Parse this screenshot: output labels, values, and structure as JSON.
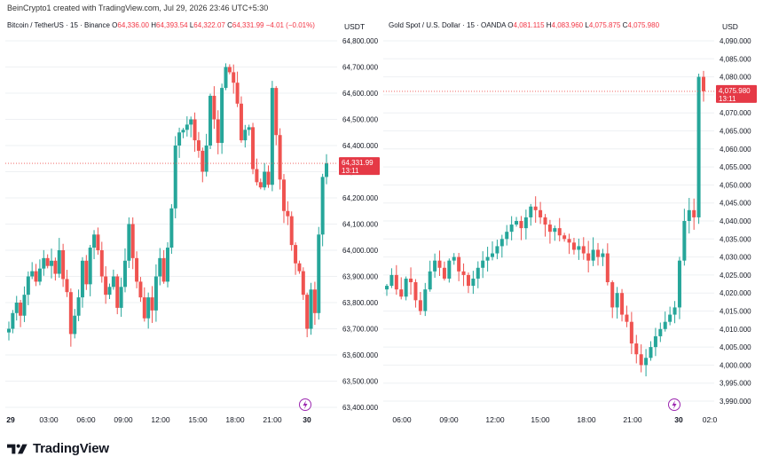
{
  "credit": "BeinCrypto1 created with TradingView.com, Jul 29, 2026 23:46 UTC+5:30",
  "brand": "TradingView",
  "colors": {
    "up": "#26a69a",
    "down": "#ef5350",
    "down_strong": "#e53946",
    "grid": "#eef0f3"
  },
  "charts": [
    {
      "title": "Bitcoin / TetherUS · 15 · Binance",
      "ohlc": {
        "o_label": "O",
        "o": "64,336.00",
        "h_label": "H",
        "h": "64,393.54",
        "l_label": "L",
        "l": "64,322.07",
        "c_label": "C",
        "c": "64,331.99",
        "change": "−4.01 (−0.01%)"
      },
      "currency": "USDT",
      "price_ticks": [
        "64,800.000",
        "64,700.000",
        "64,600.000",
        "64,500.000",
        "64,400.000",
        "64,300.000",
        "64,200.000",
        "64,100.000",
        "64,000.000",
        "63,900.000",
        "63,800.000",
        "63,700.000",
        "63,600.000",
        "63,500.000",
        "63,400.000"
      ],
      "time_ticks": [
        "29",
        "03:00",
        "06:00",
        "09:00",
        "12:00",
        "15:00",
        "18:00",
        "21:00",
        "30"
      ],
      "last_price": {
        "value": "64,331.99",
        "countdown": "13:11"
      },
      "chart_data": {
        "type": "candlestick",
        "symbol": "BTCUSDT",
        "interval": "15",
        "ylim": [
          63400,
          64800
        ],
        "last_close": 64331.99,
        "closes": [
          63700,
          63760,
          63800,
          63750,
          63830,
          63900,
          63920,
          63880,
          63930,
          63970,
          63940,
          63960,
          63910,
          64000,
          63890,
          63840,
          63680,
          63750,
          63820,
          63960,
          63870,
          64010,
          64060,
          64000,
          63900,
          63830,
          63860,
          63900,
          63780,
          63860,
          63960,
          64100,
          63970,
          63880,
          63820,
          63740,
          63820,
          63770,
          63900,
          63970,
          63880,
          64010,
          64160,
          64400,
          64450,
          64460,
          64480,
          64500,
          64420,
          64380,
          64300,
          64400,
          64590,
          64500,
          64410,
          64620,
          64700,
          64680,
          64640,
          64560,
          64420,
          64460,
          64470,
          64310,
          64260,
          64240,
          64300,
          64250,
          64620,
          64440,
          64270,
          64150,
          64130,
          64020,
          63950,
          63920,
          63830,
          63700,
          63850,
          63760,
          64060,
          64280,
          64332
        ]
      }
    },
    {
      "title": "Gold Spot / U.S. Dollar · 15 · OANDA",
      "ohlc": {
        "o_label": "O",
        "o": "4,081.115",
        "h_label": "H",
        "h": "4,083.960",
        "l_label": "L",
        "l": "4,075.875",
        "c_label": "C",
        "c": "4,075.980",
        "change": ""
      },
      "currency": "USD",
      "price_ticks": [
        "4,090.000",
        "4,085.000",
        "4,080.000",
        "4,075.000",
        "4,070.000",
        "4,065.000",
        "4,060.000",
        "4,055.000",
        "4,050.000",
        "4,045.000",
        "4,040.000",
        "4,035.000",
        "4,030.000",
        "4,025.000",
        "4,020.000",
        "4,015.000",
        "4,010.000",
        "4,005.000",
        "4,000.000",
        "3,995.000",
        "3,990.000"
      ],
      "time_ticks": [
        "06:00",
        "09:00",
        "12:00",
        "15:00",
        "18:00",
        "21:00",
        "30",
        "02:0"
      ],
      "last_price": {
        "value": "4,075.980",
        "countdown": "13:11"
      },
      "chart_data": {
        "type": "candlestick",
        "symbol": "XAUUSD",
        "interval": "15",
        "ylim": [
          3990,
          4090
        ],
        "last_close": 4075.98,
        "closes": [
          4022,
          4025,
          4021,
          4019,
          4024,
          4023,
          4018,
          4015,
          4021,
          4026,
          4029,
          4027,
          4024,
          4029,
          4030,
          4026,
          4025,
          4022,
          4024,
          4027,
          4029,
          4030,
          4031,
          4033,
          4035,
          4037,
          4039,
          4040,
          4038,
          4041,
          4044,
          4043,
          4041,
          4039,
          4037,
          4038,
          4036,
          4035,
          4034,
          4032,
          4033,
          4031,
          4029,
          4032,
          4030,
          4031,
          4023,
          4016,
          4020,
          4014,
          4012,
          4006,
          4003,
          4000,
          4002,
          4005,
          4008,
          4010,
          4012,
          4014,
          4016,
          4029,
          4040,
          4043,
          4041,
          4080,
          4076
        ]
      }
    }
  ]
}
